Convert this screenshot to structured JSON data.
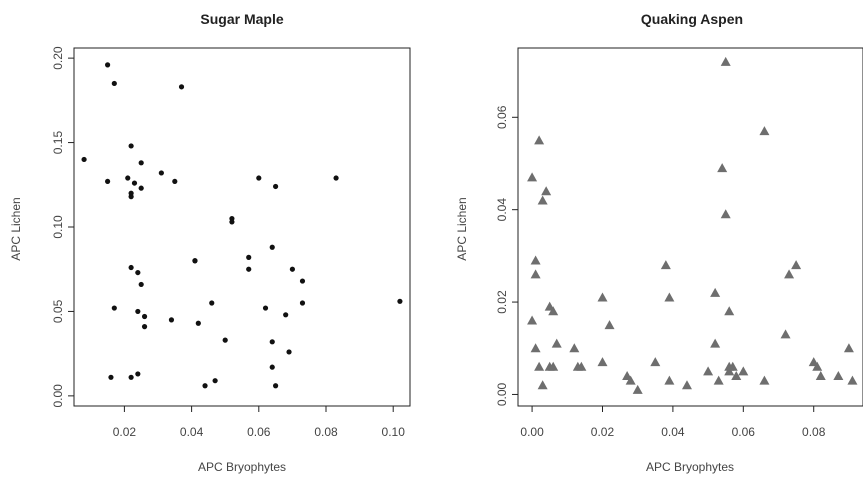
{
  "chart_data": [
    {
      "type": "scatter",
      "title": "Sugar Maple",
      "xlabel": "APC Bryophytes",
      "ylabel": "APC Lichen",
      "xlim": [
        0.005,
        0.105
      ],
      "ylim": [
        -0.006,
        0.206
      ],
      "xticks": [
        0.02,
        0.04,
        0.06,
        0.08,
        0.1
      ],
      "xtick_labels": [
        "0.02",
        "0.04",
        "0.06",
        "0.08",
        "0.10"
      ],
      "yticks": [
        0.0,
        0.05,
        0.1,
        0.15,
        0.2
      ],
      "ytick_labels": [
        "0.00",
        "0.05",
        "0.10",
        "0.15",
        "0.20"
      ],
      "marker": "circle",
      "color": "#111111",
      "grid": false,
      "series": [
        {
          "x": [
            0.015,
            0.017,
            0.037,
            0.008,
            0.015,
            0.022,
            0.025,
            0.021,
            0.022,
            0.023,
            0.025,
            0.022,
            0.031,
            0.035,
            0.052,
            0.052,
            0.06,
            0.065,
            0.083,
            0.022,
            0.024,
            0.025,
            0.041,
            0.041,
            0.057,
            0.057,
            0.064,
            0.07,
            0.073,
            0.017,
            0.024,
            0.026,
            0.026,
            0.034,
            0.042,
            0.046,
            0.062,
            0.068,
            0.073,
            0.05,
            0.064,
            0.069,
            0.016,
            0.022,
            0.024,
            0.044,
            0.047,
            0.064,
            0.065,
            0.102
          ],
          "y": [
            0.196,
            0.185,
            0.183,
            0.14,
            0.127,
            0.148,
            0.138,
            0.129,
            0.118,
            0.126,
            0.123,
            0.12,
            0.132,
            0.127,
            0.105,
            0.103,
            0.129,
            0.124,
            0.129,
            0.076,
            0.073,
            0.066,
            0.08,
            0.08,
            0.082,
            0.075,
            0.088,
            0.075,
            0.068,
            0.052,
            0.05,
            0.047,
            0.041,
            0.045,
            0.043,
            0.055,
            0.052,
            0.048,
            0.055,
            0.033,
            0.032,
            0.026,
            0.011,
            0.011,
            0.013,
            0.006,
            0.009,
            0.017,
            0.006,
            0.056
          ]
        }
      ]
    },
    {
      "type": "scatter",
      "title": "Quaking Aspen",
      "xlabel": "APC Bryophytes",
      "ylabel": "APC Lichen",
      "xlim": [
        -0.004,
        0.094
      ],
      "ylim": [
        -0.0025,
        0.075
      ],
      "xticks": [
        0.0,
        0.02,
        0.04,
        0.06,
        0.08
      ],
      "xtick_labels": [
        "0.00",
        "0.02",
        "0.04",
        "0.06",
        "0.08"
      ],
      "yticks": [
        0.0,
        0.02,
        0.04,
        0.06
      ],
      "ytick_labels": [
        "0.00",
        "0.02",
        "0.04",
        "0.06"
      ],
      "marker": "triangle",
      "color": "#6e6e6e",
      "grid": false,
      "series": [
        {
          "x": [
            0.0,
            0.001,
            0.001,
            0.002,
            0.003,
            0.004,
            0.006,
            0.005,
            0.0,
            0.001,
            0.002,
            0.003,
            0.005,
            0.006,
            0.007,
            0.012,
            0.013,
            0.014,
            0.02,
            0.02,
            0.022,
            0.027,
            0.028,
            0.03,
            0.035,
            0.038,
            0.039,
            0.039,
            0.044,
            0.05,
            0.052,
            0.053,
            0.052,
            0.054,
            0.055,
            0.055,
            0.056,
            0.057,
            0.056,
            0.056,
            0.058,
            0.06,
            0.066,
            0.066,
            0.072,
            0.073,
            0.075,
            0.08,
            0.081,
            0.082,
            0.087,
            0.09,
            0.091
          ],
          "y": [
            0.047,
            0.029,
            0.026,
            0.055,
            0.042,
            0.044,
            0.018,
            0.019,
            0.016,
            0.01,
            0.006,
            0.002,
            0.006,
            0.006,
            0.011,
            0.01,
            0.006,
            0.006,
            0.021,
            0.007,
            0.015,
            0.004,
            0.003,
            0.001,
            0.007,
            0.028,
            0.021,
            0.003,
            0.002,
            0.005,
            0.022,
            0.003,
            0.011,
            0.049,
            0.039,
            0.072,
            0.018,
            0.006,
            0.006,
            0.005,
            0.004,
            0.005,
            0.057,
            0.003,
            0.013,
            0.026,
            0.028,
            0.007,
            0.006,
            0.004,
            0.004,
            0.01,
            0.003
          ]
        }
      ]
    }
  ]
}
